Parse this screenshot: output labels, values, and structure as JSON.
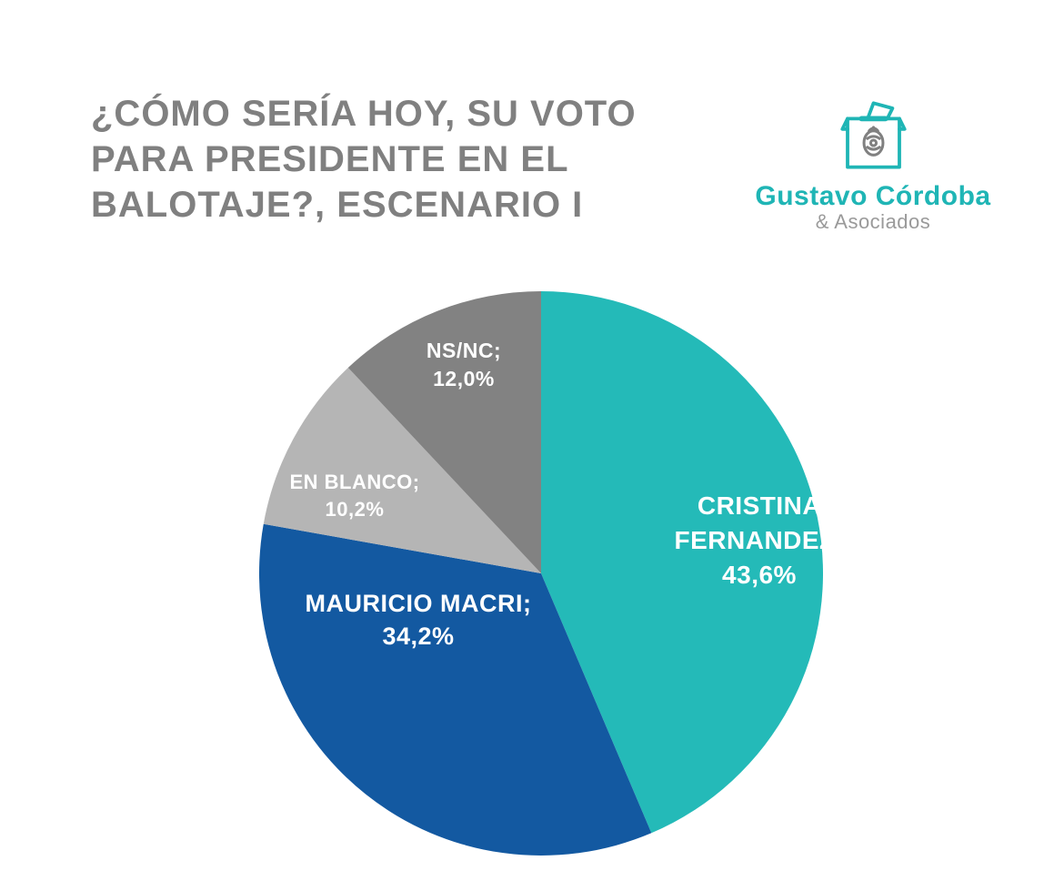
{
  "title": "¿CÓMO SERÍA HOY, SU VOTO PARA PRESIDENTE EN EL BALOTAJE?, ESCENARIO I",
  "brand": {
    "line1": "Gustavo Córdoba",
    "line2": "& Asociados",
    "logo_stroke": "#1fb5b5",
    "logo_detail": "#808080"
  },
  "chart": {
    "type": "pie",
    "background_color": "#ffffff",
    "radius": 310,
    "start_angle_deg": -90,
    "label_fontsize": 27,
    "label_fontweight": 700,
    "label_color": "#ffffff",
    "slices": [
      {
        "key": "cf",
        "label": "CRISTINA FERNANDEZ",
        "value": 43.6,
        "display": "43,6%",
        "color": "#24bab8"
      },
      {
        "key": "mm",
        "label": "MAURICIO MACRI",
        "value": 34.2,
        "display": "34,2%",
        "color": "#1359a1"
      },
      {
        "key": "eb",
        "label": "EN BLANCO",
        "value": 10.2,
        "display": "10,2%",
        "color": "#b5b5b5"
      },
      {
        "key": "ns",
        "label": "NS/NC",
        "value": 12.0,
        "display": "12,0%",
        "color": "#828282"
      }
    ]
  }
}
